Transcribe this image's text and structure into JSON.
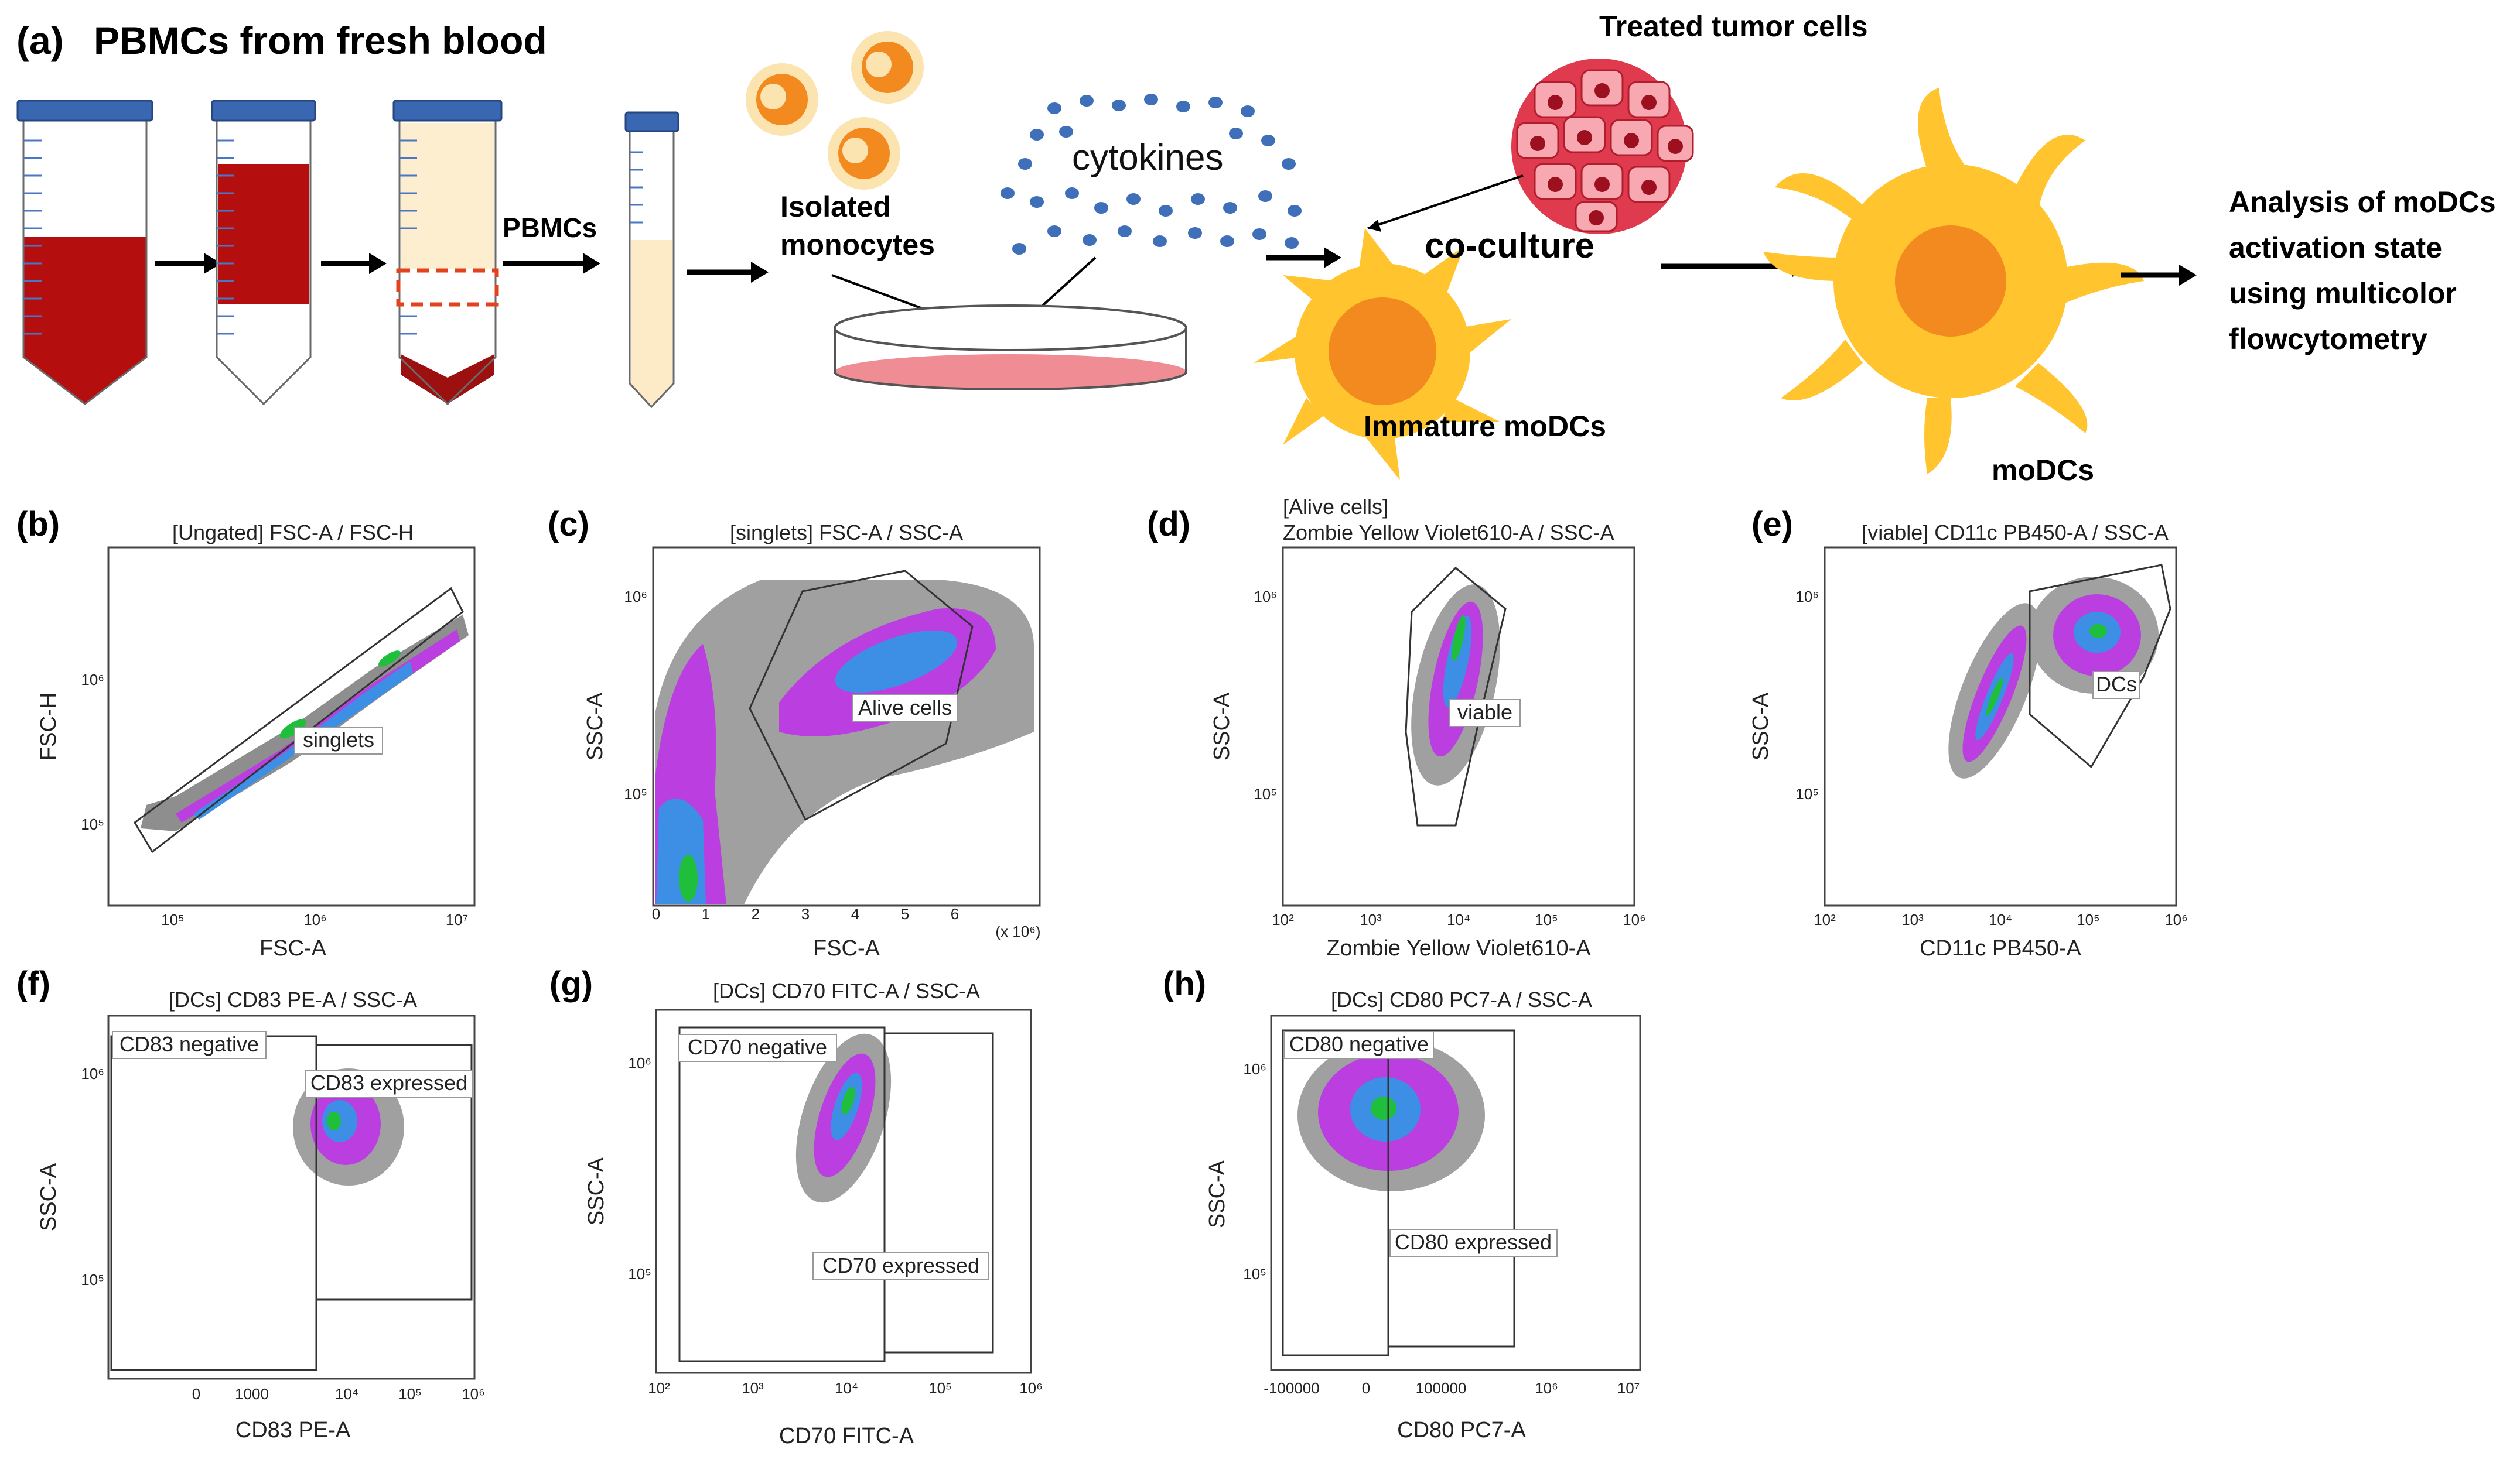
{
  "panel_a": {
    "label": "(a)",
    "title": "PBMCs from fresh blood",
    "pbmcs_label": "PBMCs",
    "isolated_monocytes": [
      "Isolated",
      "monocytes"
    ],
    "cytokines": "cytokines",
    "treated_tumor_cells": "Treated tumor cells",
    "co_culture": "co-culture",
    "immature_modcs": "Immature moDCs",
    "modcs": "moDCs",
    "analysis": [
      "Analysis of moDCs",
      "activation state",
      "using multicolor",
      "flowcytometry"
    ],
    "colors": {
      "blood": "#b40e0e",
      "tube_cap": "#3a67b1",
      "cell": "#f28a1f",
      "dc_body": "#ffc42e",
      "cytokine": "#3e6fb8",
      "tumor": "#e03a4e"
    }
  },
  "panels": [
    {
      "id": "b",
      "label": "(b)",
      "title": "[Ungated] FSC-A / FSC-H",
      "xlabel": "FSC-A",
      "ylabel": "FSC-H",
      "xticks": [
        "10⁵",
        "10⁶",
        "10⁷"
      ],
      "yticks": [
        "10⁵",
        "10⁶"
      ],
      "gates": [
        "singlets"
      ]
    },
    {
      "id": "c",
      "label": "(c)",
      "title": "[singlets] FSC-A / SSC-A",
      "xlabel": "FSC-A",
      "ylabel": "SSC-A",
      "xticks": [
        "0",
        "1",
        "2",
        "3",
        "4",
        "5",
        "6"
      ],
      "x_scale_note": "(x 10⁶)",
      "yticks": [
        "10⁵",
        "10⁶"
      ],
      "gates": [
        "Alive cells"
      ]
    },
    {
      "id": "d",
      "label": "(d)",
      "title": "[Alive cells]",
      "title2": "Zombie Yellow Violet610-A / SSC-A",
      "xlabel": "Zombie Yellow Violet610-A",
      "ylabel": "SSC-A",
      "xticks": [
        "10²",
        "10³",
        "10⁴",
        "10⁵",
        "10⁶"
      ],
      "yticks": [
        "10⁵",
        "10⁶"
      ],
      "gates": [
        "viable"
      ]
    },
    {
      "id": "e",
      "label": "(e)",
      "title": "[viable] CD11c PB450-A / SSC-A",
      "xlabel": "CD11c PB450-A",
      "ylabel": "SSC-A",
      "xticks": [
        "10²",
        "10³",
        "10⁴",
        "10⁵",
        "10⁶"
      ],
      "yticks": [
        "10⁵",
        "10⁶"
      ],
      "gates": [
        "DCs"
      ]
    },
    {
      "id": "f",
      "label": "(f)",
      "title": "[DCs] CD83 PE-A / SSC-A",
      "xlabel": "CD83 PE-A",
      "ylabel": "SSC-A",
      "xticks": [
        "0",
        "1000",
        "10⁴",
        "10⁵",
        "10⁶"
      ],
      "yticks": [
        "10⁵",
        "10⁶"
      ],
      "gates": [
        "CD83 negative",
        "CD83 expressed"
      ]
    },
    {
      "id": "g",
      "label": "(g)",
      "title": "[DCs] CD70 FITC-A / SSC-A",
      "xlabel": "CD70 FITC-A",
      "ylabel": "SSC-A",
      "xticks": [
        "10²",
        "10³",
        "10⁴",
        "10⁵",
        "10⁶"
      ],
      "yticks": [
        "10⁵",
        "10⁶"
      ],
      "gates": [
        "CD70 negative",
        "CD70 expressed"
      ]
    },
    {
      "id": "h",
      "label": "(h)",
      "title": "[DCs] CD80 PC7-A / SSC-A",
      "xlabel": "CD80 PC7-A",
      "ylabel": "SSC-A",
      "xticks": [
        "-100000",
        "0",
        "100000",
        "10⁶",
        "10⁷"
      ],
      "yticks": [
        "10⁵",
        "10⁶"
      ],
      "gates": [
        "CD80 negative",
        "CD80 expressed"
      ]
    }
  ]
}
